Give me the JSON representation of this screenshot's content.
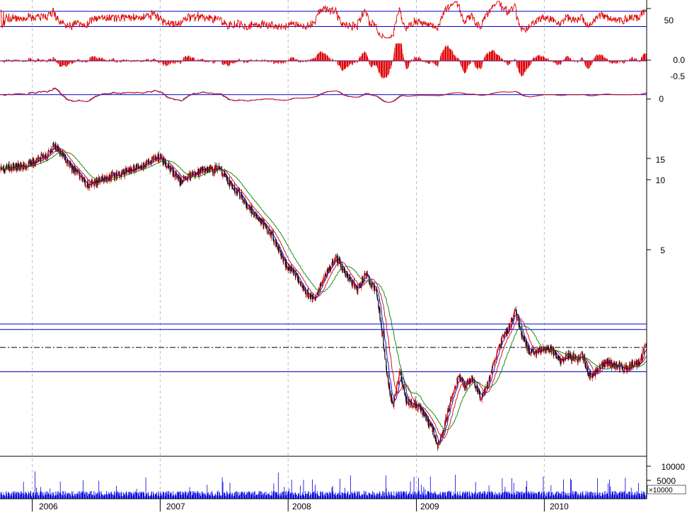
{
  "chart_data": {
    "type": "line",
    "x_axis": {
      "tick_labels": [
        "2006",
        "2007",
        "2008",
        "2009",
        "2010"
      ],
      "x_range": [
        "2005-10-01",
        "2010-10-20"
      ]
    },
    "panels": [
      {
        "id": "rsi",
        "tick_labels": [
          "50"
        ],
        "tick_values": [
          50
        ],
        "y_range": [
          15,
          80
        ],
        "reference_lines": [
          62,
          38
        ],
        "color": "#e00000"
      },
      {
        "id": "histogram",
        "tick_labels": [
          "0.0",
          "-0.5"
        ],
        "tick_values": [
          0.0,
          -0.5
        ],
        "y_range": [
          -0.9,
          0.9
        ],
        "color": "#e00000"
      },
      {
        "id": "oscillator",
        "tick_labels": [
          "0"
        ],
        "tick_values": [
          0
        ],
        "y_range": [
          -1.6,
          1.2
        ],
        "series": [
          {
            "color": "#3030c0"
          },
          {
            "color": "#e00000"
          }
        ]
      },
      {
        "id": "price",
        "scale": "log",
        "tick_labels": [
          "15",
          "10",
          "5"
        ],
        "tick_values": [
          15,
          10,
          5
        ],
        "y_range": [
          0.75,
          17
        ],
        "candle_colors": {
          "up": "#e00000",
          "down": "#000000"
        },
        "price_points": [
          [
            "2005-10-01",
            10.3
          ],
          [
            "2005-12-15",
            10.7
          ],
          [
            "2006-02-10",
            11.5
          ],
          [
            "2006-03-05",
            12.9
          ],
          [
            "2006-04-20",
            10.6
          ],
          [
            "2006-06-10",
            8.9
          ],
          [
            "2006-07-20",
            9.4
          ],
          [
            "2006-09-15",
            9.9
          ],
          [
            "2006-11-20",
            10.8
          ],
          [
            "2006-12-28",
            11.5
          ],
          [
            "2007-03-01",
            9.2
          ],
          [
            "2007-05-01",
            10.2
          ],
          [
            "2007-06-20",
            10.3
          ],
          [
            "2007-07-20",
            9.0
          ],
          [
            "2007-08-20",
            8.0
          ],
          [
            "2007-09-20",
            7.0
          ],
          [
            "2007-10-25",
            6.2
          ],
          [
            "2007-11-20",
            5.5
          ],
          [
            "2007-12-20",
            4.4
          ],
          [
            "2008-01-22",
            3.9
          ],
          [
            "2008-02-15",
            3.4
          ],
          [
            "2008-03-17",
            3.1
          ],
          [
            "2008-04-10",
            3.7
          ],
          [
            "2008-05-15",
            4.6
          ],
          [
            "2008-06-15",
            3.9
          ],
          [
            "2008-07-15",
            3.4
          ],
          [
            "2008-08-10",
            3.9
          ],
          [
            "2008-09-10",
            3.3
          ],
          [
            "2008-09-25",
            2.3
          ],
          [
            "2008-10-10",
            1.55
          ],
          [
            "2008-10-25",
            1.15
          ],
          [
            "2008-11-15",
            1.6
          ],
          [
            "2008-12-05",
            1.2
          ],
          [
            "2008-12-25",
            1.2
          ],
          [
            "2009-01-20",
            1.1
          ],
          [
            "2009-02-15",
            0.95
          ],
          [
            "2009-03-03",
            0.8
          ],
          [
            "2009-03-20",
            0.95
          ],
          [
            "2009-04-10",
            1.25
          ],
          [
            "2009-05-01",
            1.55
          ],
          [
            "2009-05-20",
            1.4
          ],
          [
            "2009-06-10",
            1.5
          ],
          [
            "2009-07-05",
            1.25
          ],
          [
            "2009-07-25",
            1.45
          ],
          [
            "2009-08-15",
            1.85
          ],
          [
            "2009-09-05",
            2.2
          ],
          [
            "2009-09-20",
            2.35
          ],
          [
            "2009-10-10",
            2.8
          ],
          [
            "2009-10-25",
            2.35
          ],
          [
            "2009-11-15",
            1.95
          ],
          [
            "2009-12-10",
            1.9
          ],
          [
            "2010-01-05",
            2.0
          ],
          [
            "2010-01-25",
            1.95
          ],
          [
            "2010-02-15",
            1.75
          ],
          [
            "2010-03-10",
            1.85
          ],
          [
            "2010-04-01",
            1.8
          ],
          [
            "2010-04-20",
            1.85
          ],
          [
            "2010-05-10",
            1.55
          ],
          [
            "2010-06-01",
            1.6
          ],
          [
            "2010-06-25",
            1.75
          ],
          [
            "2010-07-20",
            1.7
          ],
          [
            "2010-08-15",
            1.65
          ],
          [
            "2010-09-10",
            1.7
          ],
          [
            "2010-09-30",
            1.75
          ],
          [
            "2010-10-15",
            2.0
          ]
        ],
        "moving_averages": [
          {
            "window": 10,
            "color": "#0000c8"
          },
          {
            "window": 22,
            "color": "#d00000"
          },
          {
            "window": 45,
            "color": "#008000"
          }
        ],
        "horizontal_lines": [
          {
            "value": 2.48,
            "color": "#0000c8",
            "style": "solid"
          },
          {
            "value": 2.36,
            "color": "#0000c8",
            "style": "solid"
          },
          {
            "value": 2.0,
            "color": "#000000",
            "style": "dashdot"
          },
          {
            "value": 1.6,
            "color": "#0000c8",
            "style": "solid"
          }
        ]
      },
      {
        "id": "volume",
        "tick_labels": [
          "10000",
          "5000"
        ],
        "tick_values": [
          10000,
          5000
        ],
        "y_range": [
          0,
          14000
        ],
        "unit_label": "×10000",
        "color": "#0000e0"
      }
    ],
    "grid": {
      "vertical": true,
      "style": "dashed",
      "color": "#bbbbbb"
    }
  }
}
